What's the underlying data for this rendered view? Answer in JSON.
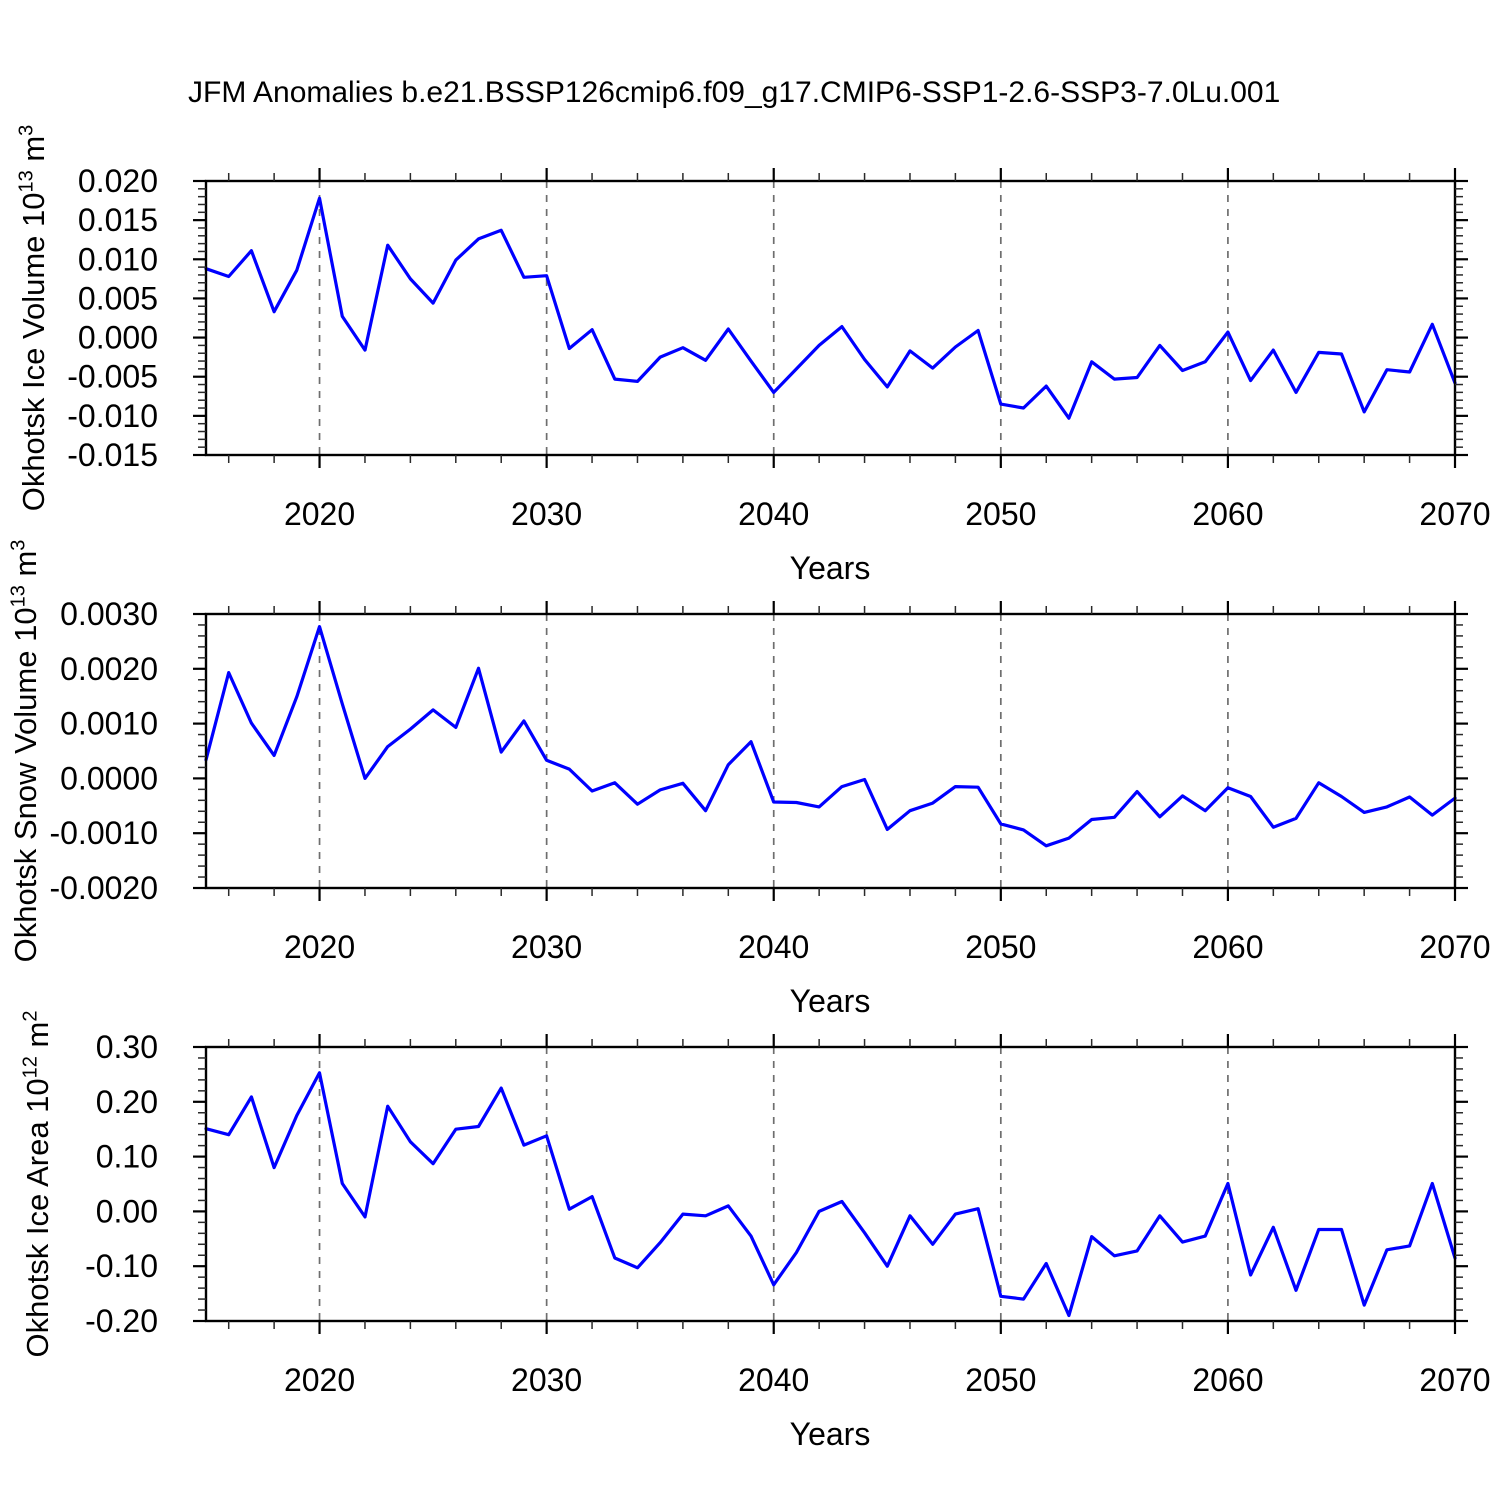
{
  "title": "JFM Anomalies b.e21.BSSP126cmip6.f09_g17.CMIP6-SSP1-2.6-SSP3-7.0Lu.001",
  "panels": [
    {
      "y_label": {
        "text": "Okhotsk Ice Volume 10",
        "sup1": "13",
        "unit": " m",
        "sup2": "3"
      },
      "x_label": "Years"
    },
    {
      "y_label": {
        "text": "Okhotsk Snow Volume 10",
        "sup1": "13",
        "unit": " m",
        "sup2": "3"
      },
      "x_label": "Years"
    },
    {
      "y_label": {
        "text": "Okhotsk Ice Area 10",
        "sup1": "12",
        "unit": " m",
        "sup2": "2"
      },
      "x_label": "Years"
    }
  ],
  "chart_data": [
    {
      "type": "line",
      "title": "JFM Anomalies b.e21.BSSP126cmip6.f09_g17.CMIP6-SSP1-2.6-SSP3-7.0Lu.001",
      "ylabel": "Okhotsk Ice Volume 10^13 m^3",
      "xlabel": "Years",
      "xlim": [
        2015,
        2070
      ],
      "ylim": [
        -0.015,
        0.02
      ],
      "y_major_step": 0.005,
      "y_minor_step": 0.001,
      "y_label_decimals": 3,
      "x_major_ticks": [
        2020,
        2030,
        2040,
        2050,
        2060,
        2070
      ],
      "x_minor_step": 2,
      "grid_years": [
        2020,
        2030,
        2040,
        2050,
        2060
      ],
      "grid_style": "dashed-vertical",
      "line_color": "#0000ff",
      "grid_color": "#6e6e6e",
      "x": [
        2015,
        2016,
        2017,
        2018,
        2019,
        2020,
        2021,
        2022,
        2023,
        2024,
        2025,
        2026,
        2027,
        2028,
        2029,
        2030,
        2031,
        2032,
        2033,
        2034,
        2035,
        2036,
        2037,
        2038,
        2039,
        2040,
        2041,
        2042,
        2043,
        2044,
        2045,
        2046,
        2047,
        2048,
        2049,
        2050,
        2051,
        2052,
        2053,
        2054,
        2055,
        2056,
        2057,
        2058,
        2059,
        2060,
        2061,
        2062,
        2063,
        2064,
        2065,
        2066,
        2067,
        2068,
        2069,
        2070
      ],
      "values": [
        0.0088,
        0.0078,
        0.0111,
        0.0033,
        0.0086,
        0.0178,
        0.0027,
        -0.0016,
        0.0118,
        0.0075,
        0.0044,
        0.0099,
        0.0126,
        0.0137,
        0.0077,
        0.0079,
        -0.0014,
        0.001,
        -0.0053,
        -0.0056,
        -0.0025,
        -0.0013,
        -0.0029,
        0.0011,
        -0.003,
        -0.007,
        -0.004,
        -0.001,
        0.0014,
        -0.0028,
        -0.0063,
        -0.0017,
        -0.0039,
        -0.0012,
        0.0009,
        -0.0085,
        -0.009,
        -0.0062,
        -0.0103,
        -0.0031,
        -0.0053,
        -0.0051,
        -0.001,
        -0.0042,
        -0.0031,
        0.0007,
        -0.0055,
        -0.0016,
        -0.007,
        -0.0019,
        -0.0021,
        -0.0095,
        -0.0041,
        -0.0044,
        0.0017,
        -0.0058
      ]
    },
    {
      "type": "line",
      "title": "",
      "ylabel": "Okhotsk Snow Volume 10^13 m^3",
      "xlabel": "Years",
      "xlim": [
        2015,
        2070
      ],
      "ylim": [
        -0.002,
        0.003
      ],
      "y_major_step": 0.001,
      "y_minor_step": 0.0002,
      "y_label_decimals": 4,
      "x_major_ticks": [
        2020,
        2030,
        2040,
        2050,
        2060,
        2070
      ],
      "x_minor_step": 2,
      "grid_years": [
        2020,
        2030,
        2040,
        2050,
        2060
      ],
      "grid_style": "dashed-vertical",
      "line_color": "#0000ff",
      "grid_color": "#6e6e6e",
      "x": [
        2015,
        2016,
        2017,
        2018,
        2019,
        2020,
        2021,
        2022,
        2023,
        2024,
        2025,
        2026,
        2027,
        2028,
        2029,
        2030,
        2031,
        2032,
        2033,
        2034,
        2035,
        2036,
        2037,
        2038,
        2039,
        2040,
        2041,
        2042,
        2043,
        2044,
        2045,
        2046,
        2047,
        2048,
        2049,
        2050,
        2051,
        2052,
        2053,
        2054,
        2055,
        2056,
        2057,
        2058,
        2059,
        2060,
        2061,
        2062,
        2063,
        2064,
        2065,
        2066,
        2067,
        2068,
        2069,
        2070
      ],
      "values": [
        0.00034,
        0.00193,
        0.00101,
        0.00042,
        0.00149,
        0.00277,
        0.00136,
        0.0,
        0.00058,
        0.0009,
        0.00125,
        0.00093,
        0.00201,
        0.00048,
        0.00105,
        0.00033,
        0.00017,
        -0.00023,
        -8e-05,
        -0.00047,
        -0.00021,
        -9e-05,
        -0.00059,
        0.00025,
        0.00067,
        -0.00043,
        -0.00044,
        -0.00052,
        -0.00015,
        -2e-05,
        -0.00093,
        -0.00059,
        -0.00045,
        -0.00015,
        -0.00016,
        -0.00083,
        -0.00094,
        -0.00123,
        -0.00109,
        -0.00075,
        -0.00071,
        -0.00024,
        -0.0007,
        -0.00032,
        -0.00059,
        -0.00017,
        -0.00033,
        -0.00089,
        -0.00073,
        -8e-05,
        -0.00033,
        -0.00062,
        -0.00052,
        -0.00034,
        -0.00067,
        -0.00036
      ]
    },
    {
      "type": "line",
      "title": "",
      "ylabel": "Okhotsk Ice Area 10^12 m^2",
      "xlabel": "Years",
      "xlim": [
        2015,
        2070
      ],
      "ylim": [
        -0.2,
        0.3
      ],
      "y_major_step": 0.1,
      "y_minor_step": 0.02,
      "y_label_decimals": 2,
      "x_major_ticks": [
        2020,
        2030,
        2040,
        2050,
        2060,
        2070
      ],
      "x_minor_step": 2,
      "grid_years": [
        2020,
        2030,
        2040,
        2050,
        2060
      ],
      "grid_style": "dashed-vertical",
      "line_color": "#0000ff",
      "grid_color": "#6e6e6e",
      "x": [
        2015,
        2016,
        2017,
        2018,
        2019,
        2020,
        2021,
        2022,
        2023,
        2024,
        2025,
        2026,
        2027,
        2028,
        2029,
        2030,
        2031,
        2032,
        2033,
        2034,
        2035,
        2036,
        2037,
        2038,
        2039,
        2040,
        2041,
        2042,
        2043,
        2044,
        2045,
        2046,
        2047,
        2048,
        2049,
        2050,
        2051,
        2052,
        2053,
        2054,
        2055,
        2056,
        2057,
        2058,
        2059,
        2060,
        2061,
        2062,
        2063,
        2064,
        2065,
        2066,
        2067,
        2068,
        2069,
        2070
      ],
      "values": [
        0.151,
        0.14,
        0.209,
        0.08,
        0.175,
        0.253,
        0.051,
        -0.01,
        0.192,
        0.127,
        0.087,
        0.15,
        0.155,
        0.225,
        0.121,
        0.138,
        0.004,
        0.027,
        -0.085,
        -0.103,
        -0.057,
        -0.005,
        -0.008,
        0.01,
        -0.045,
        -0.134,
        -0.075,
        0.0,
        0.018,
        -0.039,
        -0.1,
        -0.008,
        -0.06,
        -0.005,
        0.005,
        -0.155,
        -0.16,
        -0.095,
        -0.19,
        -0.046,
        -0.081,
        -0.072,
        -0.008,
        -0.056,
        -0.045,
        0.051,
        -0.116,
        -0.029,
        -0.144,
        -0.033,
        -0.033,
        -0.171,
        -0.07,
        -0.063,
        0.051,
        -0.085
      ]
    }
  ]
}
